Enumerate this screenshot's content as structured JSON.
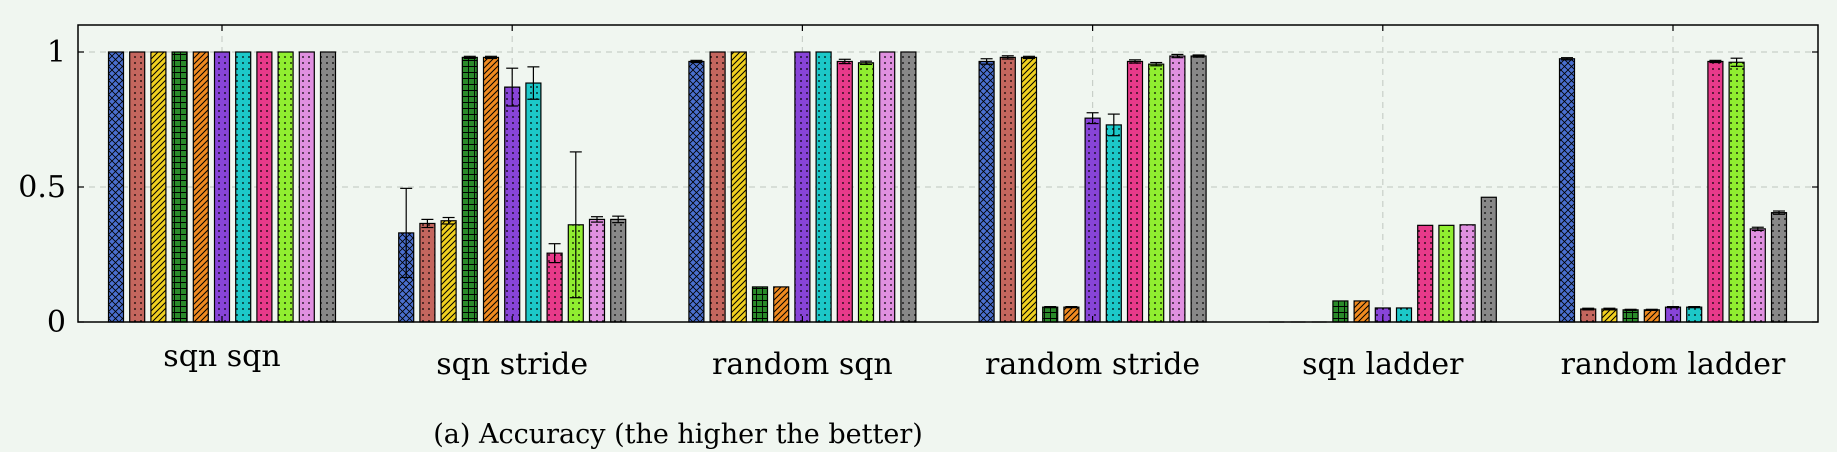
{
  "chart_data": {
    "type": "bar",
    "caption": "(a) Accuracy (the higher the better)",
    "categories": [
      "sqn sqn",
      "sqn stride",
      "random sqn",
      "random stride",
      "sqn ladder",
      "random ladder"
    ],
    "ylim": [
      0,
      1.1
    ],
    "yticks": [
      "0",
      "0.5",
      "1"
    ],
    "ytick_values": [
      0,
      0.5,
      1
    ],
    "grid": true,
    "series": [
      {
        "values": [
          1.0,
          0.33,
          0.965,
          0.965,
          0.0,
          0.975
        ],
        "errors": [
          0,
          0.165,
          0.004,
          0.01,
          0,
          0.004
        ],
        "color": "#4a6fcf",
        "pattern": "crosshatch"
      },
      {
        "values": [
          1.0,
          0.365,
          1.0,
          0.98,
          0.0,
          0.048
        ],
        "errors": [
          0,
          0.015,
          0,
          0.006,
          0,
          0.003
        ],
        "color": "#c4665e",
        "pattern": "dots"
      },
      {
        "values": [
          1.0,
          0.375,
          1.0,
          0.98,
          0.0,
          0.048
        ],
        "errors": [
          0,
          0.012,
          0,
          0.004,
          0,
          0.003
        ],
        "color": "#f0d020",
        "pattern": "diagonal"
      },
      {
        "values": [
          1.0,
          0.98,
          0.13,
          0.055,
          0.078,
          0.045
        ],
        "errors": [
          0,
          0.004,
          0,
          0.002,
          0,
          0.002
        ],
        "color": "#2a8a2a",
        "pattern": "grid"
      },
      {
        "values": [
          1.0,
          0.98,
          0.13,
          0.055,
          0.078,
          0.045
        ],
        "errors": [
          0,
          0.004,
          0,
          0.002,
          0,
          0.002
        ],
        "color": "#f08a20",
        "pattern": "diagonal"
      },
      {
        "values": [
          1.0,
          0.87,
          1.0,
          0.755,
          0.052,
          0.055
        ],
        "errors": [
          0,
          0.07,
          0,
          0.02,
          0,
          0.002
        ],
        "color": "#8844d8",
        "pattern": "dots"
      },
      {
        "values": [
          1.0,
          0.885,
          1.0,
          0.73,
          0.052,
          0.055
        ],
        "errors": [
          0,
          0.06,
          0,
          0.04,
          0,
          0.002
        ],
        "color": "#1cc8c8",
        "pattern": "dots"
      },
      {
        "values": [
          1.0,
          0.255,
          0.965,
          0.965,
          0.358,
          0.965
        ],
        "errors": [
          0,
          0.035,
          0.008,
          0.006,
          0,
          0.004
        ],
        "color": "#e83a8a",
        "pattern": "dots"
      },
      {
        "values": [
          1.0,
          0.36,
          0.96,
          0.955,
          0.358,
          0.962
        ],
        "errors": [
          0,
          0.27,
          0.006,
          0.006,
          0,
          0.015
        ],
        "color": "#90ee30",
        "pattern": "dots"
      },
      {
        "values": [
          1.0,
          0.38,
          1.0,
          0.985,
          0.36,
          0.345
        ],
        "errors": [
          0,
          0.01,
          0,
          0.006,
          0,
          0.006
        ],
        "color": "#e090e0",
        "pattern": "dots"
      },
      {
        "values": [
          1.0,
          0.38,
          1.0,
          0.985,
          0.462,
          0.405
        ],
        "errors": [
          0,
          0.012,
          0,
          0.004,
          0,
          0.006
        ],
        "color": "#888888",
        "pattern": "dots"
      }
    ]
  }
}
